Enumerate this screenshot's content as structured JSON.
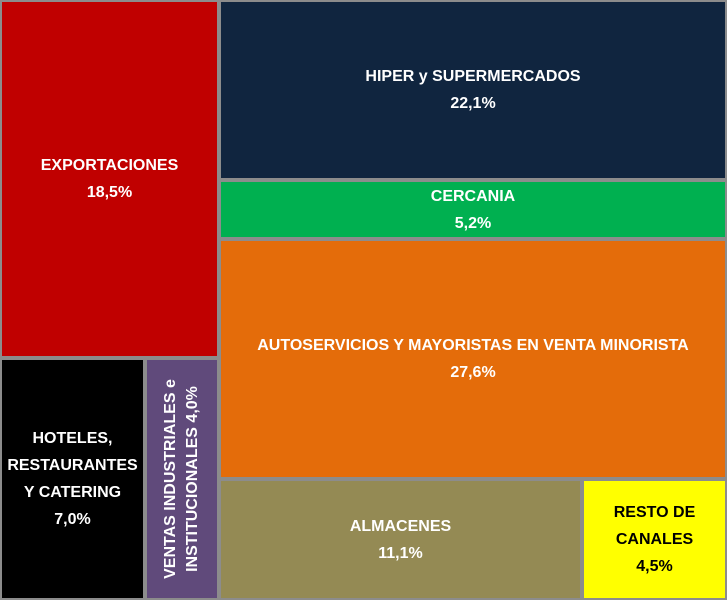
{
  "chart_data": {
    "type": "treemap",
    "title": "",
    "items": [
      {
        "id": "exportaciones",
        "label": "EXPORTACIONES",
        "value": "18,5%",
        "color": "#c00000",
        "text_color": "#ffffff"
      },
      {
        "id": "hiper",
        "label": "HIPER y SUPERMERCADOS",
        "value": "22,1%",
        "color": "#10253f",
        "text_color": "#ffffff"
      },
      {
        "id": "cercania",
        "label": "CERCANIA",
        "value": "5,2%",
        "color": "#00b050",
        "text_color": "#ffffff"
      },
      {
        "id": "autoservicios",
        "label": "AUTOSERVICIOS Y MAYORISTAS EN VENTA MINORISTA",
        "value": "27,6%",
        "color": "#e46c0a",
        "text_color": "#ffffff"
      },
      {
        "id": "hoteles",
        "label_lines": [
          "HOTELES,",
          "RESTAURANTES",
          "Y CATERING"
        ],
        "value": "7,0%",
        "color": "#000000",
        "text_color": "#ffffff"
      },
      {
        "id": "ventas",
        "label_lines": [
          "VENTAS INDUSTRIALES e",
          "INSTITUCIONALES 4,0%"
        ],
        "color": "#604a7b",
        "text_color": "#ffffff"
      },
      {
        "id": "almacenes",
        "label": "ALMACENES",
        "value": "11,1%",
        "color": "#948a54",
        "text_color": "#ffffff"
      },
      {
        "id": "resto",
        "label_lines": [
          "RESTO DE",
          "CANALES"
        ],
        "value": "4,5%",
        "color": "#ffff00",
        "text_color": "#000000"
      }
    ]
  }
}
